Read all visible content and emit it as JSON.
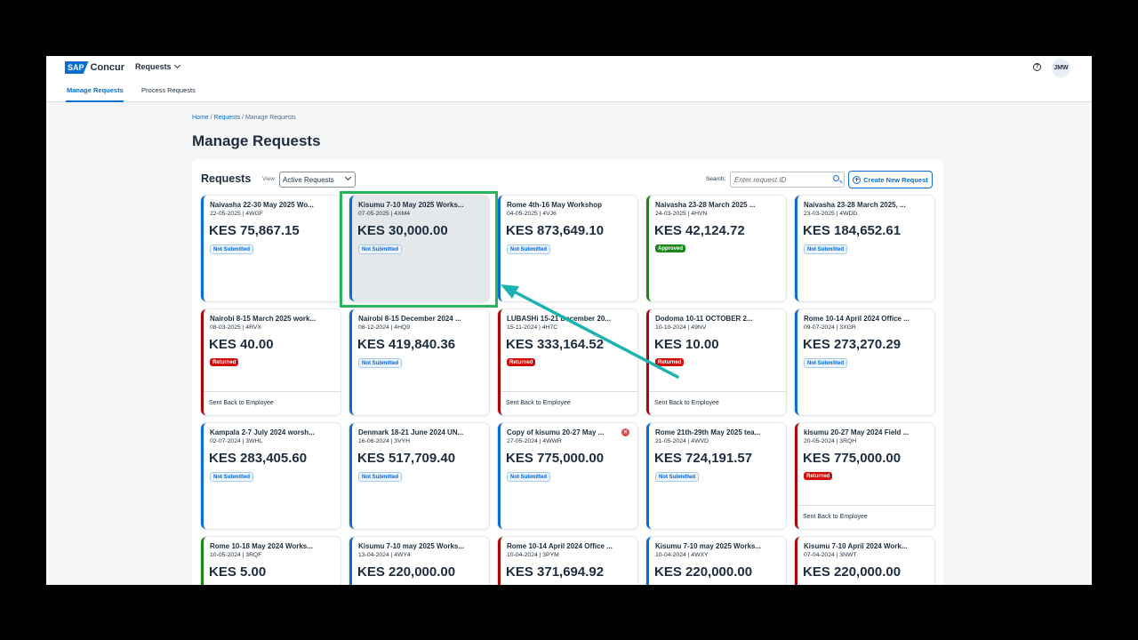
{
  "header": {
    "logo_sap": "SAP",
    "logo_concur": "Concur",
    "menu_label": "Requests",
    "avatar_initials": "JMW",
    "help_icon": "?"
  },
  "tabs": [
    {
      "label": "Manage Requests",
      "active": true
    },
    {
      "label": "Process Requests",
      "active": false
    }
  ],
  "breadcrumb": {
    "home": "Home",
    "requests": "Requests",
    "current": "Manage Requests"
  },
  "page_title": "Manage Requests",
  "toolbar": {
    "title": "Requests",
    "view_label": "View:",
    "view_value": "Active Requests",
    "search_label": "Search:",
    "search_placeholder": "Enter request ID",
    "create_label": "Create New Request"
  },
  "cards": [
    {
      "title": "Naivasha 22-30 May 2025 Wo...",
      "sub": "22-05-2025 | 4WGF",
      "amount": "KES 75,867.15",
      "status": "Not Submitted",
      "kind": "ns",
      "footer": "",
      "color": "blue"
    },
    {
      "title": "Kisumu 7-10 May 2025 Works...",
      "sub": "07-05-2025 | 4XM4",
      "amount": "KES 30,000.00",
      "status": "Not Submitted",
      "kind": "ns",
      "footer": "",
      "color": "blue",
      "selected": true
    },
    {
      "title": "Rome 4th-16 May Workshop",
      "sub": "04-05-2025 | 4VJ6",
      "amount": "KES 873,649.10",
      "status": "Not Submitted",
      "kind": "ns",
      "footer": "",
      "color": "blue"
    },
    {
      "title": "Naivasha 23-28 March 2025 ...",
      "sub": "24-03-2025 | 4HVN",
      "amount": "KES 42,124.72",
      "status": "Approved",
      "kind": "ap",
      "footer": "",
      "color": "green"
    },
    {
      "title": "Naivasha 23-28 March 2025, ...",
      "sub": "23-03-2025 | 4WDD",
      "amount": "KES 184,652.61",
      "status": "Not Submitted",
      "kind": "ns",
      "footer": "",
      "color": "blue"
    },
    {
      "title": "Nairobi 8-15 March 2025 work...",
      "sub": "08-03-2025 | 4RVX",
      "amount": "KES 40.00",
      "status": "Returned",
      "kind": "rt",
      "footer": "Sent Back to Employee",
      "color": "red"
    },
    {
      "title": "Nairobi 8-15 December 2024 ...",
      "sub": "08-12-2024 | 4HQ9",
      "amount": "KES 419,840.36",
      "status": "Not Submitted",
      "kind": "ns",
      "footer": "",
      "color": "blue"
    },
    {
      "title": "LUBASHi 15-21 December 20...",
      "sub": "15-11-2024 | 4H7C",
      "amount": "KES 333,164.52",
      "status": "Returned",
      "kind": "rt",
      "footer": "Sent Back to Employee",
      "color": "red"
    },
    {
      "title": "Dodoma 10-11 OCTOBER 2...",
      "sub": "10-10-2024 | 49NV",
      "amount": "KES 10.00",
      "status": "Returned",
      "kind": "rt",
      "footer": "Sent Back to Employee",
      "color": "red"
    },
    {
      "title": "Rome 10-14 April 2024 Office ...",
      "sub": "09-07-2024 | 3XGR",
      "amount": "KES 273,270.29",
      "status": "Not Submitted",
      "kind": "ns",
      "footer": "",
      "color": "blue"
    },
    {
      "title": "Kampala 2-7 July 2024 worsh...",
      "sub": "02-07-2024 | 3WHL",
      "amount": "KES 283,405.60",
      "status": "Not Submitted",
      "kind": "ns",
      "footer": "",
      "color": "blue"
    },
    {
      "title": "Denmark 18-21 June 2024 UN...",
      "sub": "16-06-2024 | 3VYH",
      "amount": "KES 517,709.40",
      "status": "Not Submitted",
      "kind": "ns",
      "footer": "",
      "color": "blue"
    },
    {
      "title": "Copy of kisumu 20-27 May ...",
      "sub": "27-05-2024 | 4WWR",
      "amount": "KES 775,000.00",
      "status": "Not Submitted",
      "kind": "ns",
      "footer": "",
      "color": "blue",
      "error": true
    },
    {
      "title": "Rome 21th-29th May 2025 tea...",
      "sub": "21-05-2024 | 4WVD",
      "amount": "KES 724,191.57",
      "status": "Not Submitted",
      "kind": "ns",
      "footer": "",
      "color": "blue"
    },
    {
      "title": "kisumu 20-27 May 2024 Field ...",
      "sub": "20-05-2024 | 3RQH",
      "amount": "KES 775,000.00",
      "status": "Returned",
      "kind": "rt",
      "footer": "Sent Back to Employee",
      "color": "red"
    },
    {
      "title": "Rome 10-18 May 2024 Works...",
      "sub": "10-05-2024 | 3RQF",
      "amount": "KES 5.00",
      "status": "",
      "kind": "",
      "footer": "",
      "color": "green"
    },
    {
      "title": "Kisumu 7-10 may 2025 Works...",
      "sub": "13-04-2024 | 4WY4",
      "amount": "KES 220,000.00",
      "status": "",
      "kind": "",
      "footer": "",
      "color": "blue"
    },
    {
      "title": "Rome 10-14 April 2024 Office ...",
      "sub": "10-04-2024 | 3PYM",
      "amount": "KES 371,694.92",
      "status": "",
      "kind": "",
      "footer": "",
      "color": "red"
    },
    {
      "title": "Kisumu 7-10 may 2025 Works...",
      "sub": "10-04-2024 | 4WXY",
      "amount": "KES 220,000.00",
      "status": "",
      "kind": "",
      "footer": "",
      "color": "blue"
    },
    {
      "title": "Kisumu 7-10 April 2024 Work...",
      "sub": "07-04-2024 | 3NWT",
      "amount": "KES 220,000.00",
      "status": "",
      "kind": "",
      "footer": "",
      "color": "red"
    }
  ],
  "colors": {
    "accent": "#0a6ed1",
    "highlight": "#27b45a",
    "arrow": "#1bb3b0"
  }
}
